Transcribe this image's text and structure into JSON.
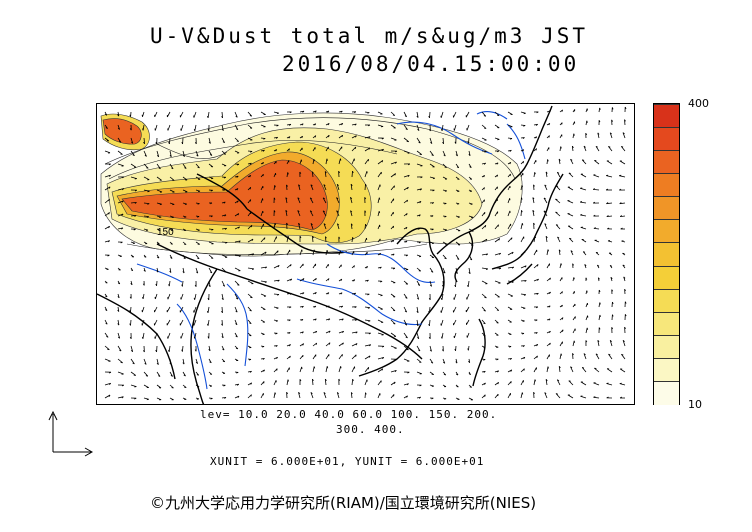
{
  "title_line1": "U-V&Dust total m/s&ug/m3 JST",
  "title_line2": "2016/08/04.15:00:00",
  "levels_line1": "lev= 10.0 20.0 40.0 60.0 100. 150. 200.",
  "levels_line2": "300. 400.",
  "unit_line": "XUNIT = 6.000E+01, YUNIT = 6.000E+01",
  "colorbar": {
    "max_label": "400",
    "min_label": "10",
    "colors": [
      "#fdfce8",
      "#fbf7c4",
      "#f9f0a0",
      "#f7e77b",
      "#f5dc55",
      "#f4cf38",
      "#f3c132",
      "#f2ab2c",
      "#f09527",
      "#ee7d22",
      "#ea6321",
      "#e4491e",
      "#d8321a"
    ]
  },
  "contour_label": "150",
  "copyright": "©九州大学応用力学研究所(RIAM)/国立環境研究所(NIES)"
}
